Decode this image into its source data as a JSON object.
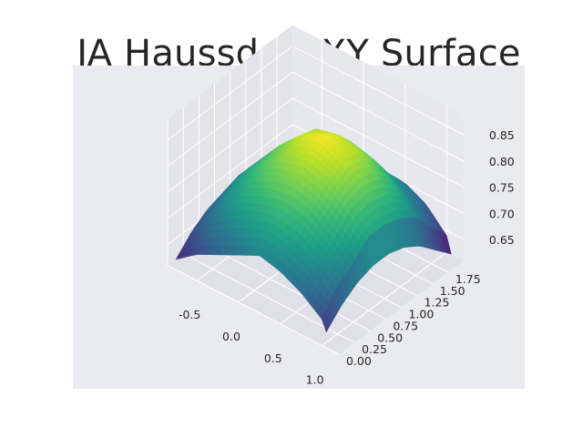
{
  "chart_data": {
    "type": "surface3d",
    "title": "JA Haussdorf XY Surface",
    "xlabel": "",
    "ylabel": "",
    "zlabel": "",
    "x_ticks": [
      "-0.5",
      "0.0",
      "0.5",
      "1.0"
    ],
    "y_ticks": [
      "0.00",
      "0.25",
      "0.50",
      "0.75",
      "1.00",
      "1.25",
      "1.50",
      "1.75"
    ],
    "z_ticks": [
      "0.65",
      "0.70",
      "0.75",
      "0.80",
      "0.85"
    ],
    "xlim": [
      -0.85,
      1.2
    ],
    "ylim": [
      0.0,
      2.0
    ],
    "zlim": [
      0.61,
      0.89
    ],
    "colormap": "viridis",
    "grid": true,
    "surface_grid": {
      "x": [
        -0.75,
        -0.5,
        -0.25,
        0.0,
        0.25,
        0.5,
        0.75,
        1.0,
        1.05
      ],
      "y": [
        0.0,
        0.25,
        0.5,
        0.75,
        1.0,
        1.25,
        1.5,
        1.75,
        2.0
      ],
      "z": [
        [
          0.63,
          0.66,
          0.68,
          0.7,
          0.72,
          0.71,
          0.69,
          0.66,
          0.64
        ],
        [
          0.66,
          0.7,
          0.73,
          0.75,
          0.76,
          0.75,
          0.73,
          0.7,
          0.67
        ],
        [
          0.68,
          0.73,
          0.77,
          0.79,
          0.8,
          0.79,
          0.76,
          0.72,
          0.69
        ],
        [
          0.69,
          0.75,
          0.79,
          0.82,
          0.83,
          0.82,
          0.79,
          0.75,
          0.7
        ],
        [
          0.7,
          0.75,
          0.8,
          0.84,
          0.86,
          0.84,
          0.8,
          0.75,
          0.7
        ],
        [
          0.68,
          0.74,
          0.79,
          0.83,
          0.84,
          0.83,
          0.79,
          0.74,
          0.69
        ],
        [
          0.66,
          0.72,
          0.76,
          0.79,
          0.8,
          0.79,
          0.76,
          0.72,
          0.67
        ],
        [
          0.64,
          0.69,
          0.72,
          0.74,
          0.74,
          0.74,
          0.71,
          0.68,
          0.64
        ],
        [
          0.6,
          0.65,
          0.68,
          0.7,
          0.7,
          0.7,
          0.68,
          0.64,
          0.61
        ]
      ]
    }
  }
}
